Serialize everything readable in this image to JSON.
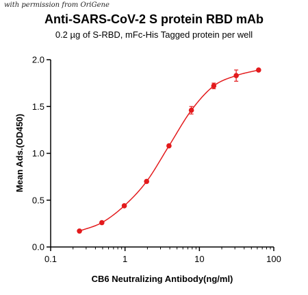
{
  "watermark": "with permission from OriGene",
  "colors": {
    "series": "#e31a1c",
    "axis": "#000000"
  },
  "chart_data": {
    "type": "line",
    "title": "Anti-SARS-CoV-2 S protein RBD mAb",
    "subtitle": "0.2 µg of S-RBD, mFc-His Tagged protein per well",
    "xlabel": "CB6 Neutralizing Antibody(ng/ml)",
    "ylabel": "Mean Ads.(OD450)",
    "xscale": "log",
    "xlim": [
      0.1,
      100
    ],
    "ylim": [
      0.0,
      2.0
    ],
    "x_ticks": [
      0.1,
      1,
      10,
      100
    ],
    "x_tick_labels": [
      "0.1",
      "1",
      "10",
      "100"
    ],
    "y_ticks": [
      0.0,
      0.5,
      1.0,
      1.5,
      2.0
    ],
    "y_tick_labels": [
      "0.0",
      "0.5",
      "1.0",
      "1.5",
      "2.0"
    ],
    "grid": false,
    "legend": "none",
    "series": [
      {
        "x": [
          0.244,
          0.488,
          0.977,
          1.95,
          3.9,
          7.8,
          15.6,
          31.25,
          62.5
        ],
        "y": [
          0.17,
          0.26,
          0.44,
          0.7,
          1.08,
          1.46,
          1.72,
          1.83,
          1.89
        ],
        "error": [
          0.01,
          0.01,
          0.01,
          0.01,
          0.01,
          0.04,
          0.03,
          0.06,
          0.01
        ],
        "fit": "four-parameter logistic"
      }
    ]
  }
}
